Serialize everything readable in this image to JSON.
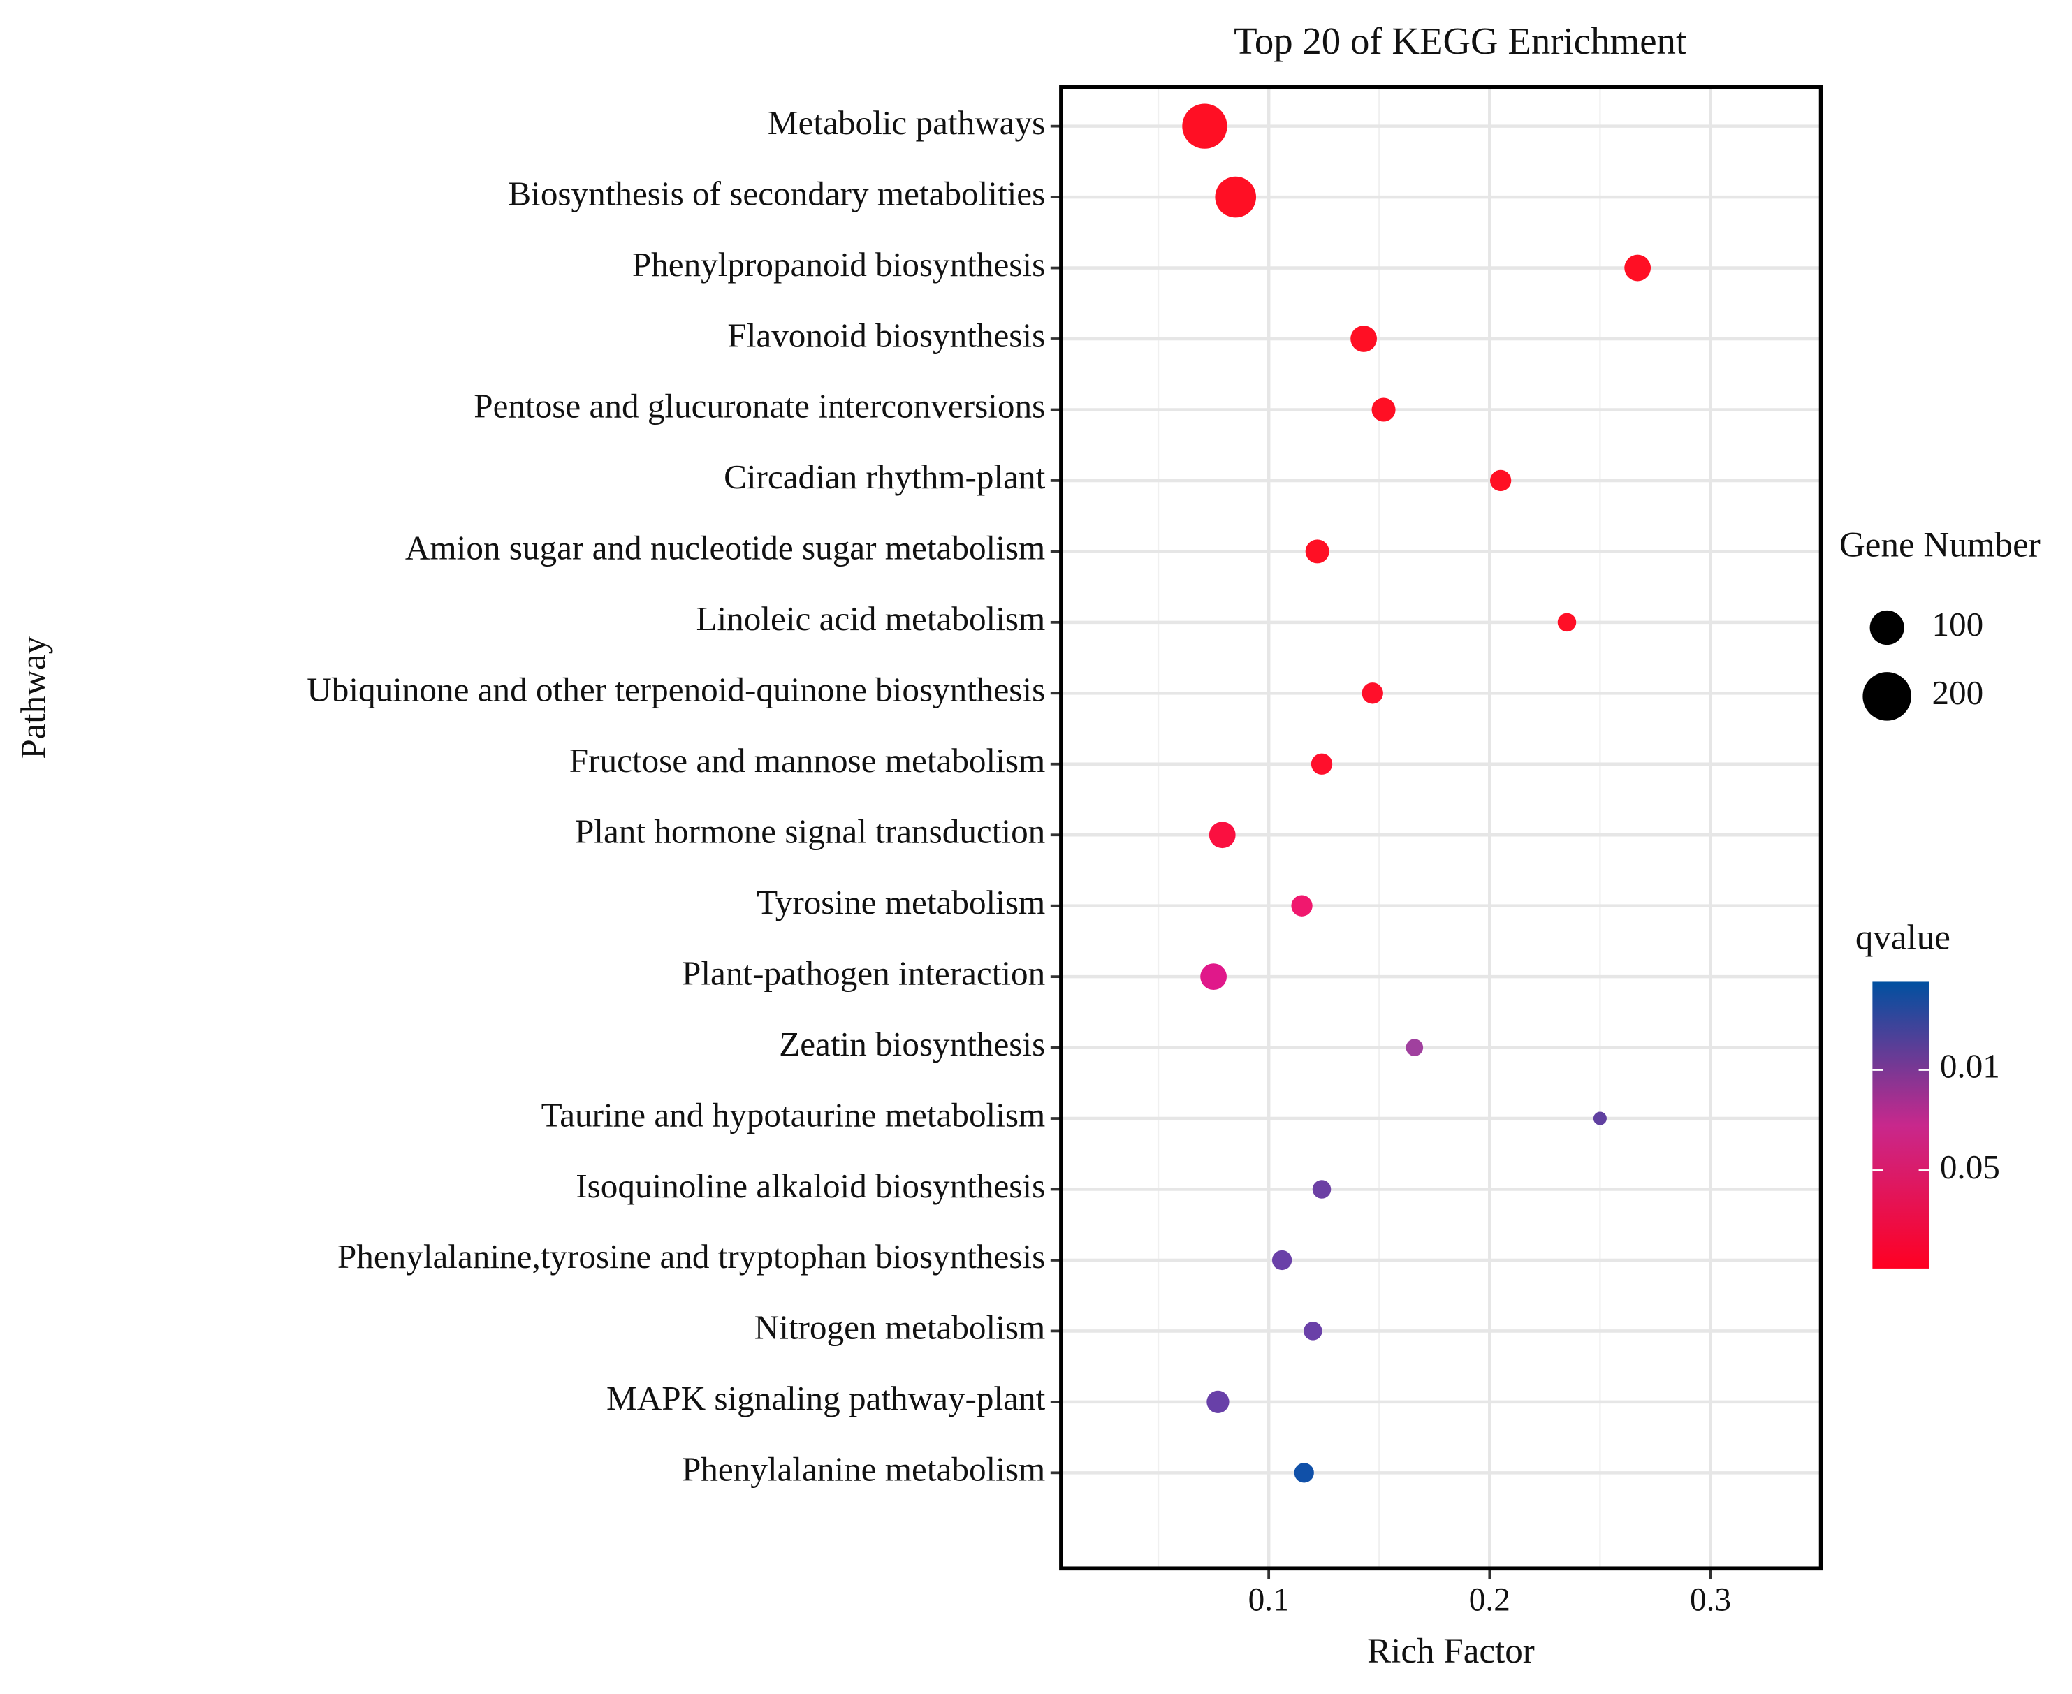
{
  "chart_data": {
    "type": "scatter",
    "title": "Top 20 of KEGG Enrichment",
    "xlabel": "Rich Factor",
    "ylabel": "Pathway",
    "categories": [
      "Metabolic pathways",
      "Biosynthesis of secondary metabolities",
      "Phenylpropanoid biosynthesis",
      "Flavonoid biosynthesis",
      "Pentose and glucuronate interconversions",
      "Circadian rhythm-plant",
      "Amion sugar and nucleotide sugar metabolism",
      "Linoleic acid metabolism",
      "Ubiquinone and other terpenoid-quinone biosynthesis",
      "Fructose and mannose metabolism",
      "Plant hormone signal transduction",
      "Tyrosine metabolism",
      "Plant-pathogen interaction",
      "Zeatin biosynthesis",
      "Taurine and hypotaurine metabolism",
      "Isoquinoline alkaloid biosynthesis",
      "Phenylalanine,tyrosine and tryptophan biosynthesis",
      "Nitrogen metabolism",
      "MAPK signaling pathway-plant",
      "Phenylalanine metabolism"
    ],
    "values": [
      0.071,
      0.085,
      0.267,
      0.143,
      0.152,
      0.205,
      0.122,
      0.235,
      0.147,
      0.124,
      0.079,
      0.115,
      0.075,
      0.166,
      0.25,
      0.124,
      0.106,
      0.12,
      0.077,
      0.116
    ],
    "sizes": [
      171,
      142,
      59,
      59,
      48,
      38,
      48,
      29,
      38,
      38,
      59,
      38,
      59,
      25,
      15,
      29,
      33,
      29,
      43,
      33
    ],
    "colors": [
      "#ff0f24",
      "#ff0f24",
      "#ff0f24",
      "#ff0f24",
      "#ff0f24",
      "#ff0f24",
      "#ff0f24",
      "#ff0f26",
      "#ff0f2a",
      "#ff0f2c",
      "#fa1040",
      "#f0186e",
      "#e0188a",
      "#a0409e",
      "#6040a0",
      "#6c40a4",
      "#6a40a8",
      "#6a40a8",
      "#6840a8",
      "#1050a8"
    ],
    "xlim": [
      0.006,
      0.35
    ],
    "xticks": [
      0.1,
      0.2,
      0.3
    ],
    "xminor": [
      0.05,
      0.15,
      0.25
    ],
    "grid": true,
    "size_legend": {
      "title": "Gene Number",
      "values": [
        100,
        200
      ]
    },
    "color_scale": {
      "title": "qvalue",
      "lim": [
        0.089,
        -0.025
      ],
      "ticks": [
        0.01,
        0.05
      ],
      "colors": [
        "#ff0022",
        "#c8288c",
        "#0050a0"
      ]
    }
  }
}
